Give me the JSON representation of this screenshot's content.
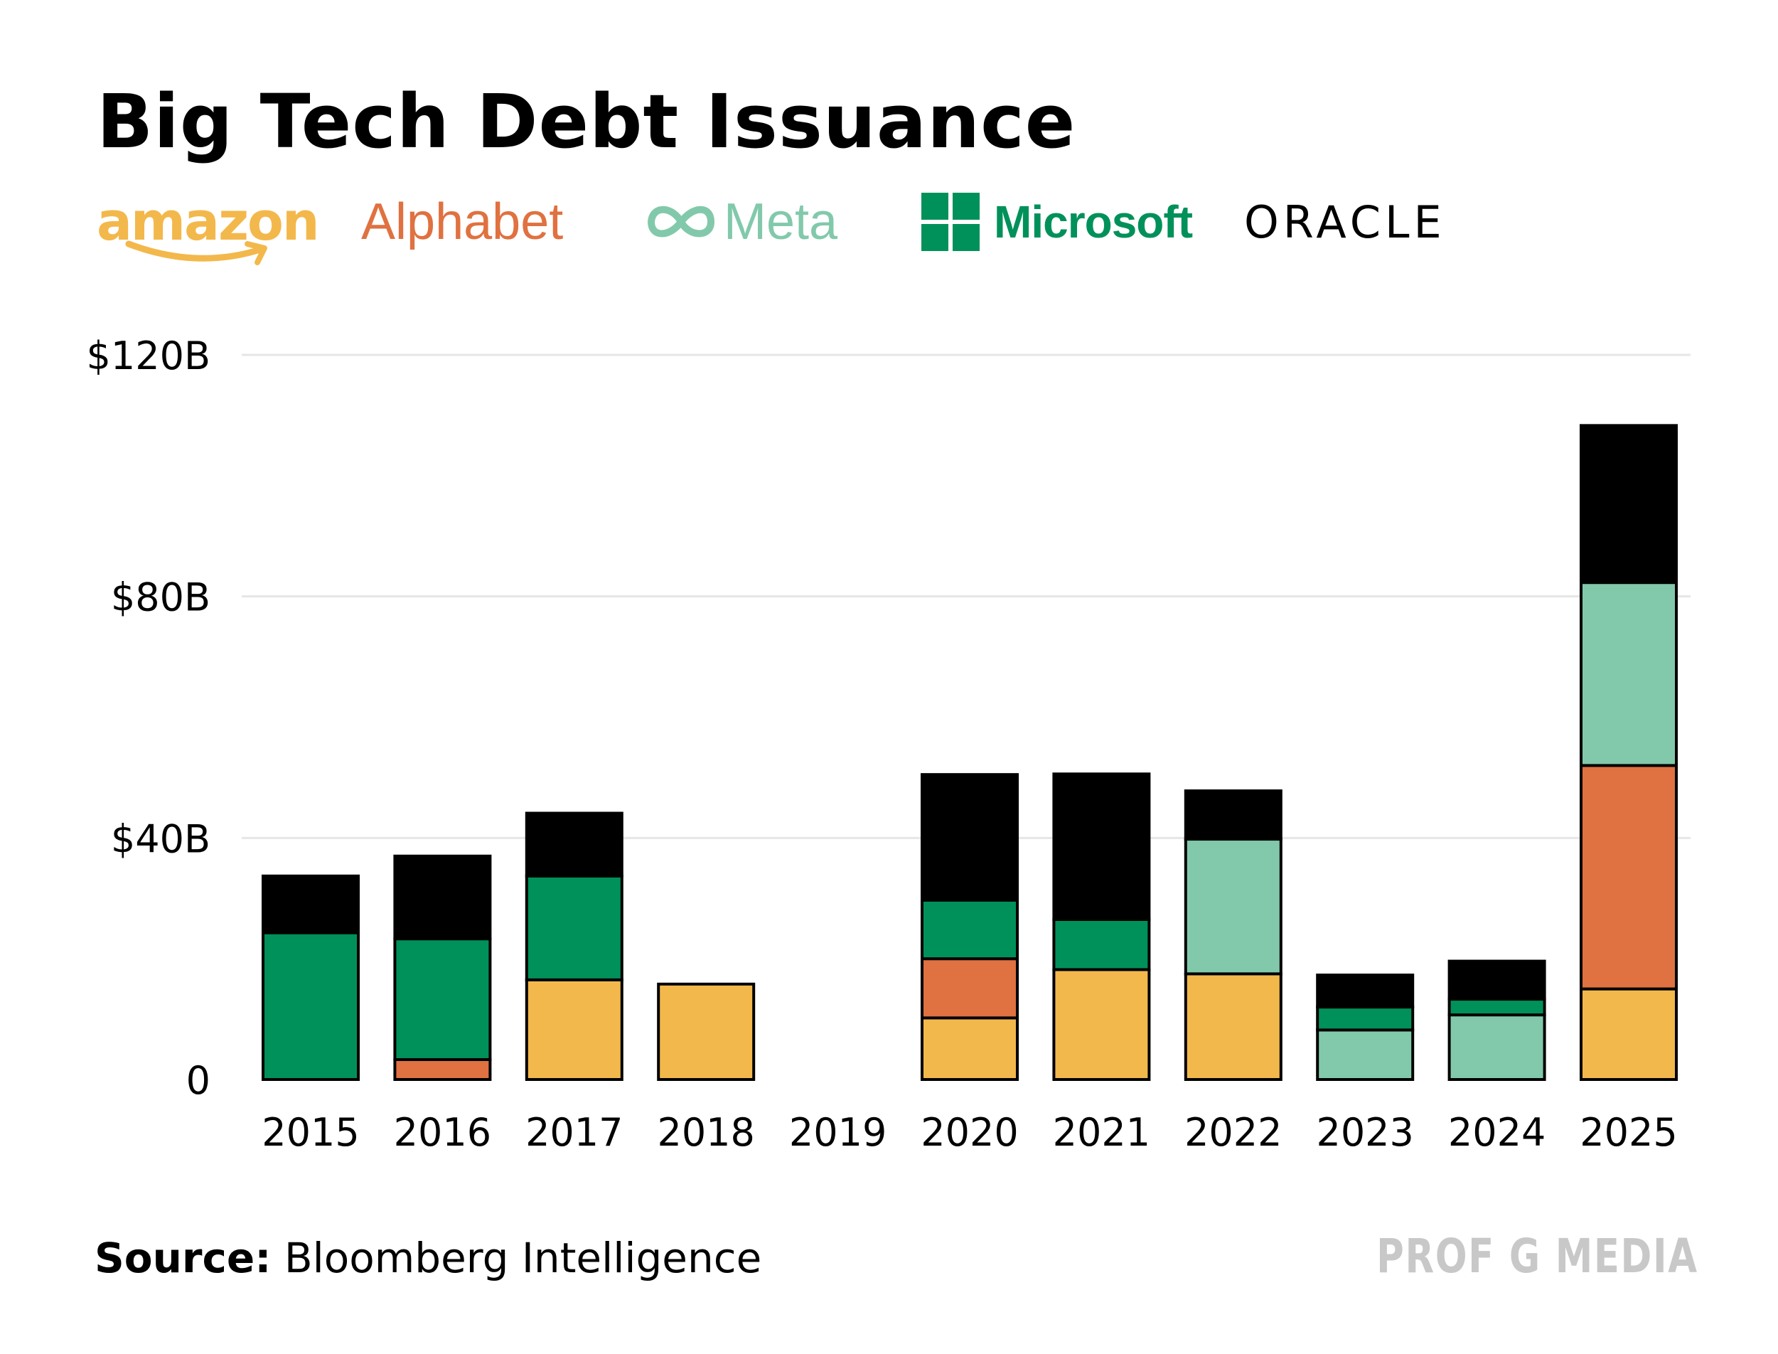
{
  "title": "Big Tech Debt Issuance",
  "source_label": "Source:",
  "source_text": "Bloomberg Intelligence",
  "watermark": "PROF G MEDIA",
  "legend": [
    {
      "name": "amazon",
      "color": "#F3B84B",
      "icon": "amazon-smile-icon"
    },
    {
      "name": "Alphabet",
      "color": "#E07140",
      "icon": ""
    },
    {
      "name": "Meta",
      "color": "#82C9AB",
      "icon": "meta-infinity-icon"
    },
    {
      "name": "Microsoft",
      "color": "#00915A",
      "icon": "microsoft-windows-icon"
    },
    {
      "name": "ORACLE",
      "color": "#000000",
      "icon": ""
    }
  ],
  "chart_data": {
    "type": "bar",
    "stacked": true,
    "title": "Big Tech Debt Issuance",
    "xlabel": "",
    "ylabel": "",
    "ylim": [
      0,
      120
    ],
    "yticks": [
      0,
      40,
      80,
      120
    ],
    "ytick_labels": [
      "0",
      "$40B",
      "$80B",
      "$120B"
    ],
    "grid": true,
    "categories": [
      "2015",
      "2016",
      "2017",
      "2018",
      "2019",
      "2020",
      "2021",
      "2022",
      "2023",
      "2024",
      "2025"
    ],
    "series": [
      {
        "name": "Amazon",
        "color": "#F3B84B",
        "values": [
          0,
          0,
          16.5,
          15.8,
          0,
          10.2,
          18.2,
          17.5,
          0,
          0,
          15
        ]
      },
      {
        "name": "Alphabet",
        "color": "#E07140",
        "values": [
          0,
          3.3,
          0,
          0,
          0,
          9.8,
          0,
          0,
          0,
          0,
          37
        ]
      },
      {
        "name": "Meta",
        "color": "#82C9AB",
        "values": [
          0,
          0,
          0,
          0,
          0,
          0,
          0,
          22.3,
          8.2,
          10.7,
          30.3
        ]
      },
      {
        "name": "Microsoft",
        "color": "#00915A",
        "values": [
          24.3,
          20,
          17.2,
          0,
          0,
          9.7,
          8.3,
          0,
          3.8,
          2.6,
          0
        ]
      },
      {
        "name": "Oracle",
        "color": "#000000",
        "values": [
          9.4,
          13.7,
          10.4,
          0,
          0,
          20.8,
          24.1,
          8,
          5.3,
          6.3,
          26
        ]
      }
    ]
  }
}
